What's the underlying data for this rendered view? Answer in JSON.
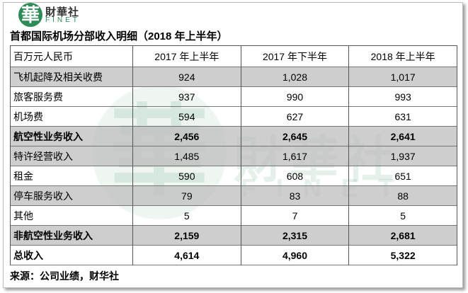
{
  "logo": {
    "mark": "華",
    "name": "財華社",
    "sub": "FINET"
  },
  "title": "首都国际机场分部收入明细（2018 年上半年）",
  "table": {
    "header": [
      "百万元人民币",
      "2017 年上半年",
      "2017 年下半年",
      "2018 年上半年"
    ],
    "rows": [
      [
        "飞机起降及相关收费",
        "924",
        "1,028",
        "1,017"
      ],
      [
        "旅客服务费",
        "937",
        "990",
        "993"
      ],
      [
        "机场费",
        "594",
        "627",
        "631"
      ],
      [
        "航空性业务收入",
        "2,456",
        "2,645",
        "2,641"
      ],
      [
        "特许经营收入",
        "1,485",
        "1,617",
        "1,937"
      ],
      [
        "租金",
        "590",
        "608",
        "651"
      ],
      [
        "停车服务收入",
        "79",
        "83",
        "88"
      ],
      [
        "其他",
        "5",
        "7",
        "5"
      ],
      [
        "非航空性业务收入",
        "2,159",
        "2,315",
        "2,681"
      ],
      [
        "总收入",
        "4,614",
        "4,960",
        "5,322"
      ]
    ]
  },
  "source": "来源：公司业绩，财华社"
}
